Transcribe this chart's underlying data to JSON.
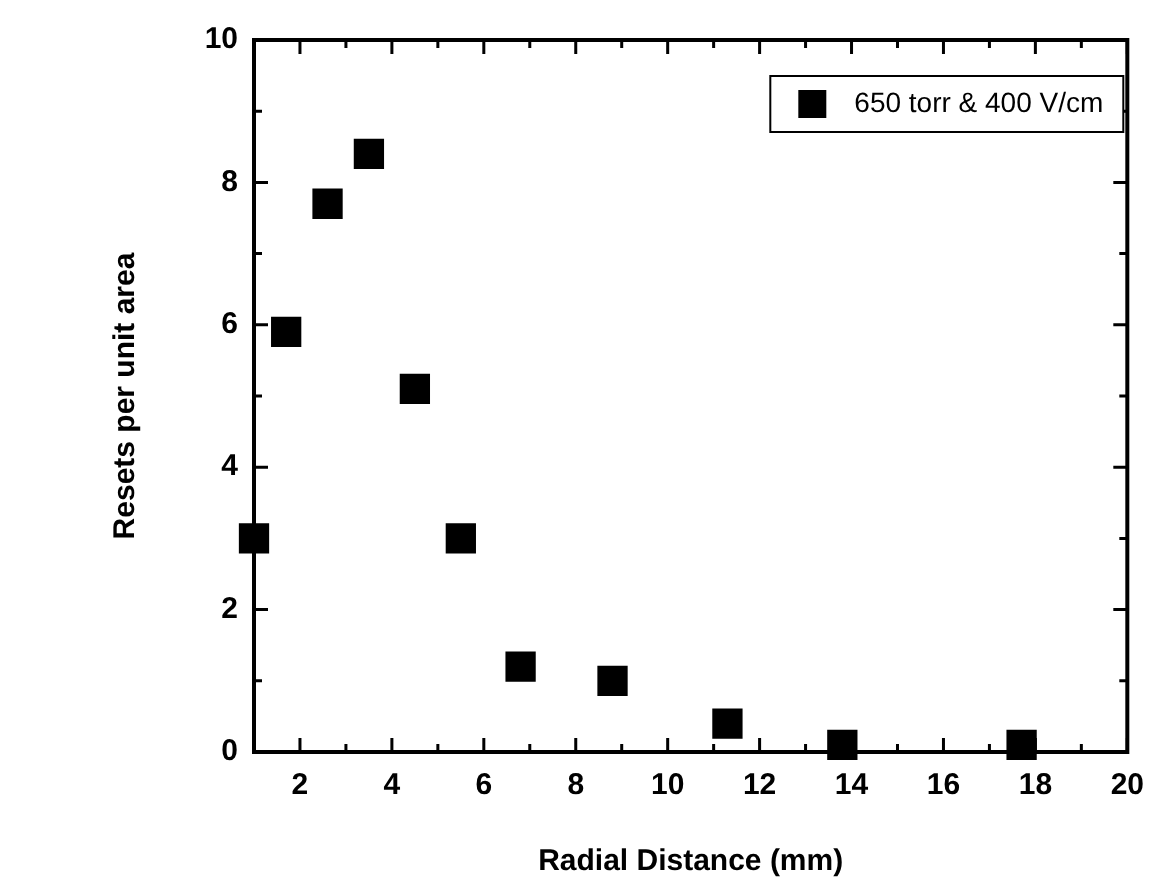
{
  "chart_data": {
    "type": "scatter",
    "xlabel": "Radial Distance (mm)",
    "ylabel": "Resets per unit area",
    "xlim": [
      1,
      20
    ],
    "xticks": [
      {
        "value": 1,
        "label": null
      },
      2,
      {
        "value": 3,
        "label": null
      },
      4,
      {
        "value": 5,
        "label": null
      },
      6,
      {
        "value": 7,
        "label": null
      },
      8,
      {
        "value": 9,
        "label": null
      },
      10,
      {
        "value": 11,
        "label": null
      },
      12,
      {
        "value": 13,
        "label": null
      },
      14,
      {
        "value": 15,
        "label": null
      },
      16,
      {
        "value": 17,
        "label": null
      },
      18,
      {
        "value": 19,
        "label": null
      },
      20
    ],
    "ylim": [
      0,
      10
    ],
    "yticks": [
      0,
      {
        "value": 1,
        "label": null
      },
      2,
      {
        "value": 3,
        "label": null
      },
      4,
      {
        "value": 5,
        "label": null
      },
      6,
      {
        "value": 7,
        "label": null
      },
      8,
      {
        "value": 9,
        "label": null
      },
      10
    ],
    "grid": false,
    "legend": "top right",
    "marker": "square",
    "series": [
      {
        "name": "650 torr & 400 V/cm",
        "color": "#000000",
        "x": [
          null,
          null,
          1.0,
          1.7,
          2.6,
          3.5,
          4.5,
          5.5,
          6.8,
          8.8,
          11.3,
          13.8,
          17.7
        ],
        "values": [
          null,
          null,
          3.0,
          5.9,
          7.7,
          8.4,
          5.1,
          3.0,
          1.2,
          1.0,
          0.4,
          0.1,
          0.1
        ]
      }
    ]
  }
}
